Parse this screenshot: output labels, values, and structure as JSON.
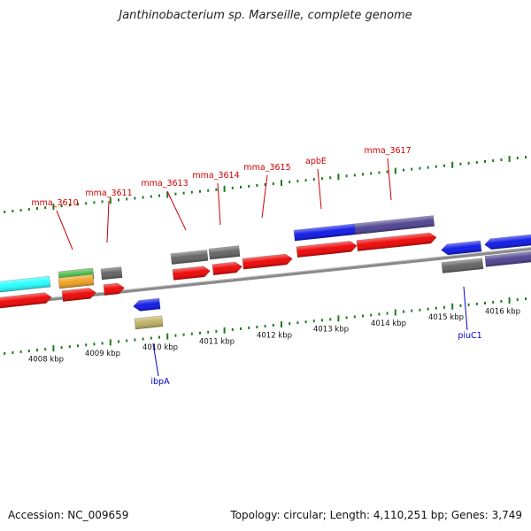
{
  "header": {
    "title": "Janthinobacterium sp. Marseille, complete genome"
  },
  "footer": {
    "accession": "Accession: NC_009659",
    "summary": "Topology: circular; Length: 4,110,251 bp; Genes: 3,749"
  },
  "colors": {
    "backbone": "#8a8a8a",
    "ruler_ticks": "#1f7a1f",
    "top_labels": "#cc0000",
    "bottom_labels": "#0000cc",
    "cds_red": "#ee0000",
    "cds_blue": "#0a14e6",
    "cds_navy": "#4b3f8f",
    "cds_gray": "#606060",
    "cds_cyan": "#22ffff",
    "cds_green": "#3cb43c",
    "cds_orange": "#f0a020",
    "cds_khaki": "#bfb060"
  },
  "gene_labels_top": [
    {
      "name": "mma_3610"
    },
    {
      "name": "mma_3611"
    },
    {
      "name": "mma_3613"
    },
    {
      "name": "mma_3614"
    },
    {
      "name": "mma_3615"
    },
    {
      "name": "apbE"
    },
    {
      "name": "mma_3617"
    }
  ],
  "gene_labels_bottom": [
    {
      "name": "ibpA"
    },
    {
      "name": "piuC1"
    }
  ],
  "kbp_labels": [
    "4008 kbp",
    "4009 kbp",
    "4010 kbp",
    "4011 kbp",
    "4012 kbp",
    "4013 kbp",
    "4014 kbp",
    "4015 kbp",
    "4016 kbp"
  ]
}
